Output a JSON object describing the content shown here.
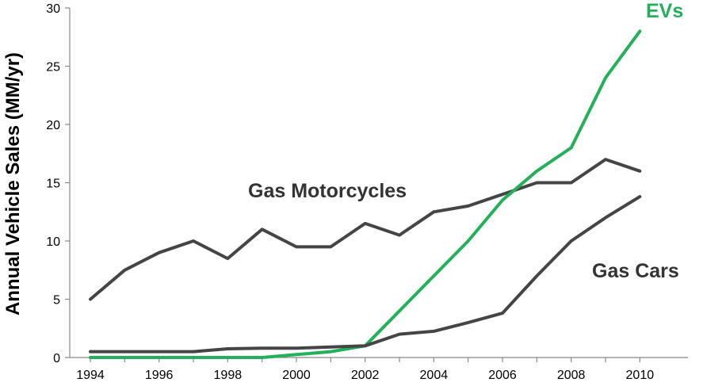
{
  "chart_data": {
    "type": "line",
    "title": "",
    "xlabel": "",
    "ylabel": "Annual Vehicle Sales (MM/yr)",
    "xlim": [
      1993.4,
      2011.4
    ],
    "ylim": [
      0,
      30
    ],
    "x_ticks": [
      "1994",
      "1996",
      "1998",
      "2000",
      "2002",
      "2004",
      "2006",
      "2008",
      "2010"
    ],
    "y_ticks": [
      "0",
      "5",
      "10",
      "15",
      "20",
      "25",
      "30"
    ],
    "grid": false,
    "legend": "inline labels",
    "x": [
      1994,
      1995,
      1996,
      1997,
      1998,
      1999,
      2000,
      2001,
      2002,
      2003,
      2004,
      2005,
      2006,
      2007,
      2008,
      2009,
      2010
    ],
    "series": [
      {
        "name": "Gas Motorcycles",
        "color": "#454545",
        "values": [
          5.0,
          7.5,
          9.0,
          10.0,
          8.5,
          11.0,
          9.5,
          9.5,
          11.5,
          10.5,
          12.5,
          13.0,
          14.0,
          15.0,
          15.0,
          17.0,
          16.0
        ]
      },
      {
        "name": "EVs",
        "color": "#22b05a",
        "values": [
          0.0,
          0.0,
          0.0,
          0.0,
          0.0,
          0.0,
          0.25,
          0.5,
          1.0,
          4.0,
          7.0,
          10.0,
          13.5,
          16.0,
          18.0,
          24.0,
          28.0
        ]
      },
      {
        "name": "Gas Cars",
        "color": "#454545",
        "values": [
          0.5,
          0.5,
          0.5,
          0.5,
          0.75,
          0.8,
          0.8,
          0.9,
          1.0,
          2.0,
          2.25,
          3.0,
          3.8,
          7.0,
          10.0,
          12.0,
          13.8
        ]
      }
    ]
  }
}
